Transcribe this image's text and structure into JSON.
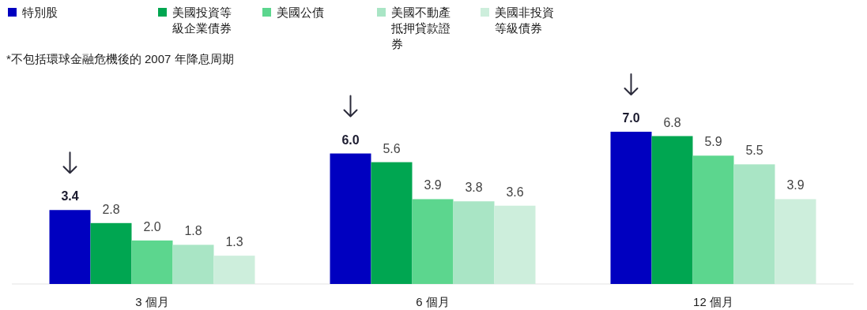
{
  "chart_data": {
    "type": "bar",
    "legend": "top left",
    "annotations": [
      "*不包括環球金融危機後的 2007 年降息周期"
    ],
    "categories": [
      "3 個月",
      "6 個月",
      "12 個月"
    ],
    "series": [
      {
        "name": "特別股",
        "color": "#0000c0",
        "values": [
          3.4,
          6.0,
          7.0
        ],
        "value_labels": [
          "3.4",
          "6.0",
          "7.0"
        ]
      },
      {
        "name": "美國投資等級企業債券",
        "color": "#00a651",
        "values": [
          2.8,
          5.6,
          6.8
        ],
        "value_labels": [
          "2.8",
          "5.6",
          "6.8"
        ]
      },
      {
        "name": "美國公債",
        "color": "#5cd68e",
        "values": [
          2.0,
          3.9,
          5.9
        ],
        "value_labels": [
          "2.0",
          "3.9",
          "5.9"
        ]
      },
      {
        "name": "美國不動產抵押貸款證券",
        "color": "#a9e5c5",
        "values": [
          1.8,
          3.8,
          5.5
        ],
        "value_labels": [
          "1.8",
          "3.8",
          "5.5"
        ]
      },
      {
        "name": "美國非投資等級債券",
        "color": "#cdeedc",
        "values": [
          1.3,
          3.6,
          3.9
        ],
        "value_labels": [
          "1.3",
          "3.6",
          "3.9"
        ]
      }
    ]
  }
}
